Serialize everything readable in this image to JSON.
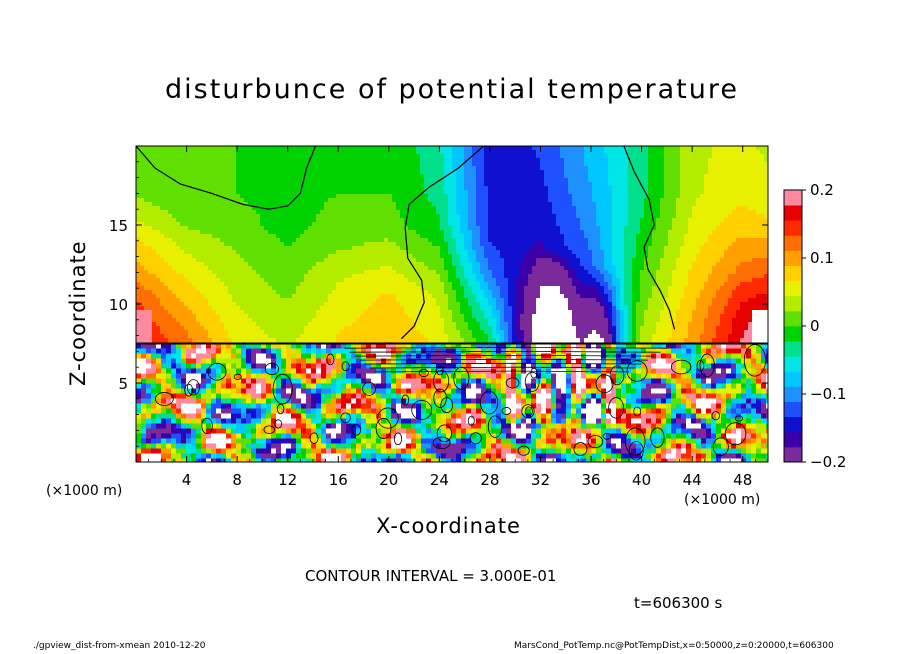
{
  "chart_data": {
    "type": "heatmap",
    "title": "disturbunce of potential temperature",
    "xlabel": "X-coordinate",
    "ylabel": "Z-coordinate",
    "x_unit": "(×1000 m)",
    "xlim": [
      0,
      50
    ],
    "ylim": [
      0,
      20
    ],
    "x_ticks": [
      4,
      8,
      12,
      16,
      20,
      24,
      28,
      32,
      36,
      40,
      44,
      48
    ],
    "y_ticks": [
      5,
      10,
      15
    ],
    "colorbar": {
      "range": [
        -0.2,
        0.2
      ],
      "tick_values": [
        0.2,
        0.1,
        0,
        -0.1,
        -0.2
      ],
      "tick_labels": [
        "0.2",
        "0.1",
        "0",
        "−0.1",
        "−0.2"
      ],
      "colors": [
        "#7b2a9c",
        "#3b00a8",
        "#1010d0",
        "#1e50ff",
        "#1e90ff",
        "#00c8ff",
        "#00e6e6",
        "#00e08a",
        "#00d200",
        "#60e000",
        "#b4ec00",
        "#e6f000",
        "#ffd000",
        "#ffa000",
        "#ff6e00",
        "#ff2a00",
        "#e60000",
        "#ff8aa0"
      ]
    },
    "contour_interval": "CONTOUR INTERVAL = 3.000E-01",
    "time_label": "t=606300 s",
    "footer_left": "./gpview_dist-from-xmean  2010-12-20",
    "footer_right": "MarsCond_PotTemp.nc@PotTempDist,x=0:50000,z=0:20000,t=606300",
    "field_upper": [
      {
        "x": 0,
        "values": [
          0.16,
          0.15,
          0.13,
          0.1,
          0.08,
          0.05,
          0.02,
          0.01
        ]
      },
      {
        "x": 4,
        "values": [
          0.12,
          0.1,
          0.08,
          0.06,
          0.04,
          0.02,
          0.0,
          0.0
        ]
      },
      {
        "x": 8,
        "values": [
          0.06,
          0.05,
          0.04,
          0.03,
          0.02,
          0.01,
          0.0,
          0.0
        ]
      },
      {
        "x": 12,
        "values": [
          0.04,
          0.03,
          0.02,
          0.01,
          0.0,
          -0.01,
          -0.01,
          -0.02
        ]
      },
      {
        "x": 16,
        "values": [
          0.07,
          0.06,
          0.05,
          0.04,
          0.02,
          0.01,
          0.0,
          -0.01
        ]
      },
      {
        "x": 20,
        "values": [
          0.09,
          0.08,
          0.07,
          0.05,
          0.03,
          0.01,
          0.0,
          0.0
        ]
      },
      {
        "x": 24,
        "values": [
          0.06,
          0.05,
          0.04,
          0.02,
          0.0,
          -0.02,
          -0.03,
          -0.04
        ]
      },
      {
        "x": 28,
        "values": [
          -0.02,
          -0.05,
          -0.08,
          -0.11,
          -0.13,
          -0.14,
          -0.14,
          -0.15
        ]
      },
      {
        "x": 32,
        "values": [
          -0.26,
          -0.25,
          -0.22,
          -0.19,
          -0.16,
          -0.15,
          -0.14,
          -0.13
        ]
      },
      {
        "x": 36,
        "values": [
          -0.17,
          -0.16,
          -0.14,
          -0.12,
          -0.11,
          -0.1,
          -0.09,
          -0.08
        ]
      },
      {
        "x": 40,
        "values": [
          0.03,
          0.02,
          0.01,
          0.0,
          -0.01,
          -0.02,
          -0.03,
          -0.03
        ]
      },
      {
        "x": 44,
        "values": [
          0.1,
          0.09,
          0.08,
          0.07,
          0.06,
          0.05,
          0.04,
          0.04
        ]
      },
      {
        "x": 48,
        "values": [
          0.18,
          0.17,
          0.15,
          0.12,
          0.1,
          0.08,
          0.06,
          0.05
        ]
      },
      {
        "x": 50,
        "values": [
          0.21,
          0.19,
          0.16,
          0.13,
          0.1,
          0.07,
          0.05,
          0.04
        ]
      }
    ],
    "field_upper_z": [
      7.6,
      9,
      10.5,
      12,
      13.5,
      15,
      17,
      20
    ]
  }
}
